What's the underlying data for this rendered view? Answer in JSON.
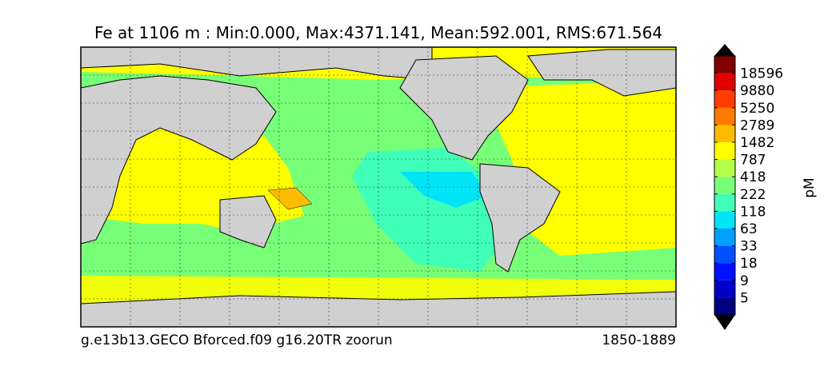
{
  "title": "Fe at 1106 m : Min:0.000, Max:4371.141, Mean:592.001, RMS:671.564",
  "footer_left": "g.e13b13.GECO Bforced.f09 g16.20TR zoorun",
  "footer_right": "1850-1889",
  "colorbar": {
    "label": "pM",
    "ticks": [
      5,
      9,
      18,
      33,
      63,
      118,
      222,
      418,
      787,
      1482,
      2789,
      5250,
      9880,
      18596
    ],
    "colors": [
      "#00007f",
      "#0000c8",
      "#0010ff",
      "#0050ff",
      "#00a0ff",
      "#00e4f8",
      "#40ffb8",
      "#78ff78",
      "#b4ff48",
      "#ffff00",
      "#ffbb00",
      "#ff7a00",
      "#ff3c00",
      "#e00000",
      "#800000"
    ]
  }
}
